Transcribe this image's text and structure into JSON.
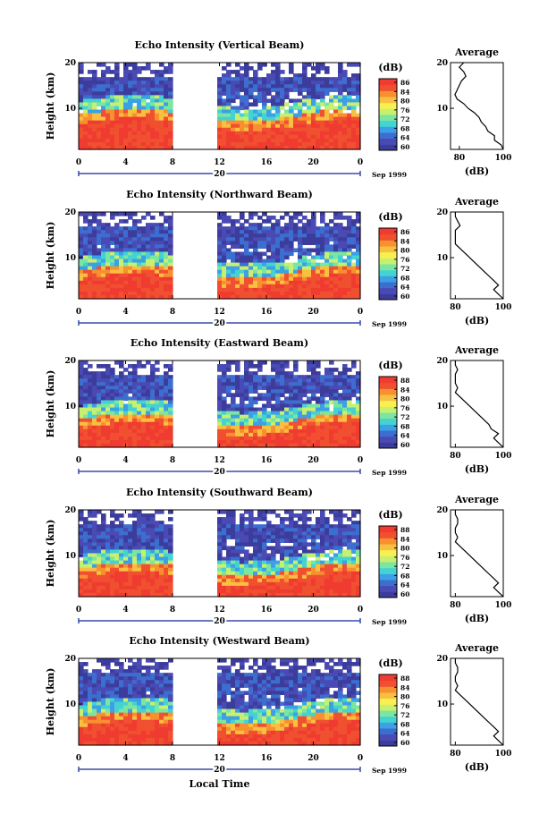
{
  "chart_data": [
    {
      "type": "heatmap",
      "title": "Echo Intensity (Vertical Beam)",
      "ylabel": "Height (km)",
      "x_ticks": [
        "0",
        "4",
        "8",
        "12",
        "16",
        "20",
        "0"
      ],
      "y_ticks": [
        "20",
        "10"
      ],
      "date_center": "20",
      "date_end": "Sep 1999",
      "ylim": [
        1,
        20
      ],
      "xlim": [
        0,
        24
      ],
      "gap": [
        8,
        12
      ],
      "colorbar": {
        "unit": "(dB)",
        "labels": [
          "86",
          "84",
          "80",
          "76",
          "72",
          "68",
          "64",
          "60"
        ]
      },
      "profile": {
        "title": "Average",
        "xlabel": "(dB)",
        "x_ticks": [
          "80",
          "100"
        ],
        "y_ticks": [
          "20",
          "10"
        ],
        "xlim": [
          76,
          100
        ],
        "points": [
          [
            20,
            82
          ],
          [
            19,
            80
          ],
          [
            18,
            82
          ],
          [
            17,
            83
          ],
          [
            16,
            81
          ],
          [
            15,
            80
          ],
          [
            14,
            79
          ],
          [
            13,
            78
          ],
          [
            12,
            79
          ],
          [
            11,
            82
          ],
          [
            10,
            84
          ],
          [
            9,
            87
          ],
          [
            8,
            89
          ],
          [
            7,
            90
          ],
          [
            6,
            92
          ],
          [
            5,
            93
          ],
          [
            4,
            96
          ],
          [
            3,
            96
          ],
          [
            2,
            99
          ],
          [
            1,
            100
          ]
        ]
      }
    },
    {
      "type": "heatmap",
      "title": "Echo Intensity (Northward Beam)",
      "ylabel": "Height (km)",
      "x_ticks": [
        "0",
        "4",
        "8",
        "12",
        "16",
        "20",
        "0"
      ],
      "y_ticks": [
        "20",
        "10"
      ],
      "date_center": "20",
      "date_end": "Sep 1999",
      "ylim": [
        1,
        20
      ],
      "xlim": [
        0,
        24
      ],
      "gap": [
        8,
        12
      ],
      "colorbar": {
        "unit": "(dB)",
        "labels": [
          "86",
          "84",
          "80",
          "76",
          "72",
          "68",
          "64",
          "60"
        ]
      },
      "profile": {
        "title": "Average",
        "xlabel": "(dB)",
        "x_ticks": [
          "80",
          "100"
        ],
        "y_ticks": [
          "20",
          "10"
        ],
        "xlim": [
          78,
          100
        ],
        "points": [
          [
            20,
            80
          ],
          [
            19,
            80
          ],
          [
            18,
            81
          ],
          [
            17,
            82
          ],
          [
            16,
            80
          ],
          [
            15,
            80
          ],
          [
            14,
            80
          ],
          [
            13,
            80
          ],
          [
            12,
            82
          ],
          [
            11,
            84
          ],
          [
            10,
            86
          ],
          [
            9,
            88
          ],
          [
            8,
            90
          ],
          [
            7,
            92
          ],
          [
            6,
            94
          ],
          [
            5,
            96
          ],
          [
            4,
            98
          ],
          [
            3,
            96
          ],
          [
            2,
            98
          ],
          [
            1,
            100
          ]
        ]
      }
    },
    {
      "type": "heatmap",
      "title": "Echo Intensity (Eastward Beam)",
      "ylabel": "Height (km)",
      "x_ticks": [
        "0",
        "4",
        "8",
        "12",
        "16",
        "20",
        "0"
      ],
      "y_ticks": [
        "20",
        "10"
      ],
      "date_center": "20",
      "date_end": "Sep 1999",
      "ylim": [
        1,
        20
      ],
      "xlim": [
        0,
        24
      ],
      "gap": [
        8,
        12
      ],
      "colorbar": {
        "unit": "(dB)",
        "labels": [
          "88",
          "84",
          "80",
          "76",
          "72",
          "68",
          "64",
          "60"
        ]
      },
      "profile": {
        "title": "Average",
        "xlabel": "(dB)",
        "x_ticks": [
          "80",
          "100"
        ],
        "y_ticks": [
          "20",
          "10"
        ],
        "xlim": [
          78,
          100
        ],
        "points": [
          [
            20,
            80
          ],
          [
            19,
            80
          ],
          [
            18,
            81
          ],
          [
            17,
            80
          ],
          [
            16,
            80
          ],
          [
            15,
            80
          ],
          [
            14,
            81
          ],
          [
            13,
            80
          ],
          [
            12,
            82
          ],
          [
            11,
            84
          ],
          [
            10,
            86
          ],
          [
            9,
            88
          ],
          [
            8,
            90
          ],
          [
            7,
            92
          ],
          [
            6,
            94
          ],
          [
            5,
            95
          ],
          [
            4,
            98
          ],
          [
            3,
            96
          ],
          [
            2,
            98
          ],
          [
            1,
            100
          ]
        ]
      }
    },
    {
      "type": "heatmap",
      "title": "Echo Intensity (Southward Beam)",
      "ylabel": "Height (km)",
      "x_ticks": [
        "0",
        "4",
        "8",
        "12",
        "16",
        "20",
        "0"
      ],
      "y_ticks": [
        "20",
        "10"
      ],
      "date_center": "20",
      "date_end": "Sep 1999",
      "ylim": [
        1,
        20
      ],
      "xlim": [
        0,
        24
      ],
      "gap": [
        8,
        12
      ],
      "colorbar": {
        "unit": "(dB)",
        "labels": [
          "88",
          "84",
          "80",
          "76",
          "72",
          "68",
          "64",
          "60"
        ]
      },
      "profile": {
        "title": "Average",
        "xlabel": "(dB)",
        "x_ticks": [
          "80",
          "100"
        ],
        "y_ticks": [
          "20",
          "10"
        ],
        "xlim": [
          78,
          100
        ],
        "points": [
          [
            20,
            80
          ],
          [
            19,
            80
          ],
          [
            18,
            81
          ],
          [
            17,
            81
          ],
          [
            16,
            80
          ],
          [
            15,
            80
          ],
          [
            14,
            81
          ],
          [
            13,
            80
          ],
          [
            12,
            82
          ],
          [
            11,
            84
          ],
          [
            10,
            86
          ],
          [
            9,
            88
          ],
          [
            8,
            90
          ],
          [
            7,
            92
          ],
          [
            6,
            94
          ],
          [
            5,
            96
          ],
          [
            4,
            98
          ],
          [
            3,
            96
          ],
          [
            2,
            98
          ],
          [
            1,
            100
          ]
        ]
      }
    },
    {
      "type": "heatmap",
      "title": "Echo Intensity (Westward Beam)",
      "ylabel": "Height (km)",
      "x_ticks": [
        "0",
        "4",
        "8",
        "12",
        "16",
        "20",
        "0"
      ],
      "y_ticks": [
        "20",
        "10"
      ],
      "date_center": "20",
      "date_end": "Sep 1999",
      "ylim": [
        1,
        20
      ],
      "xlim": [
        0,
        24
      ],
      "gap": [
        8,
        12
      ],
      "colorbar": {
        "unit": "(dB)",
        "labels": [
          "88",
          "84",
          "80",
          "76",
          "72",
          "68",
          "64",
          "60"
        ]
      },
      "profile": {
        "title": "Average",
        "xlabel": "(dB)",
        "x_ticks": [
          "80",
          "100"
        ],
        "y_ticks": [
          "20",
          "10"
        ],
        "xlim": [
          78,
          100
        ],
        "points": [
          [
            20,
            80
          ],
          [
            19,
            80
          ],
          [
            18,
            81
          ],
          [
            17,
            81
          ],
          [
            16,
            80
          ],
          [
            15,
            80
          ],
          [
            14,
            81
          ],
          [
            13,
            80
          ],
          [
            12,
            82
          ],
          [
            11,
            84
          ],
          [
            10,
            86
          ],
          [
            9,
            88
          ],
          [
            8,
            90
          ],
          [
            7,
            92
          ],
          [
            6,
            94
          ],
          [
            5,
            96
          ],
          [
            4,
            98
          ],
          [
            3,
            96
          ],
          [
            2,
            98
          ],
          [
            1,
            100
          ]
        ]
      }
    }
  ],
  "footer": {
    "xlabel": "Local Time"
  },
  "colors": {
    "scale": [
      "#3c3c9c",
      "#4a4ab4",
      "#3c6ed0",
      "#3ca0e6",
      "#44d2d2",
      "#7ae6a0",
      "#c8f070",
      "#f8f050",
      "#f8c040",
      "#f89030",
      "#f05030",
      "#f03c30"
    ]
  }
}
